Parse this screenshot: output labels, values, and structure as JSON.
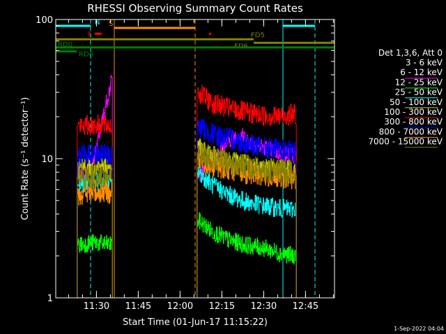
{
  "chart_data": {
    "type": "line",
    "title": "RHESSI Observing Summary Count Rates",
    "xlabel": "Start Time (01-Jun-17 11:15:22)",
    "ylabel": "Count Rate (s⁻¹ detector⁻¹)",
    "yscale": "log",
    "ylim": [
      1,
      100
    ],
    "xlim_minutes": [
      0,
      100
    ],
    "y_ticks": [
      "1",
      "10",
      "100"
    ],
    "x_ticks": [
      {
        "label": "11:30",
        "minute": 14.6
      },
      {
        "label": "11:45",
        "minute": 29.6
      },
      {
        "label": "12:00",
        "minute": 44.6
      },
      {
        "label": "12:15",
        "minute": 59.6
      },
      {
        "label": "12:30",
        "minute": 74.6
      },
      {
        "label": "12:45",
        "minute": 89.6
      }
    ],
    "legend_title": "Det 1,3,6, Att 0",
    "legend_position": "right",
    "series": [
      {
        "name": "3 - 6 keV",
        "color": "#000000",
        "seg1": [
          [
            8,
            8.8
          ],
          [
            14,
            9.0
          ],
          [
            20,
            9.2
          ]
        ],
        "seg2": [
          [
            51,
            17
          ],
          [
            56,
            15
          ],
          [
            62,
            14
          ],
          [
            68,
            13.5
          ],
          [
            74,
            14.5
          ],
          [
            80,
            13
          ],
          [
            86,
            12.5
          ]
        ]
      },
      {
        "name": "6 - 12 keV",
        "color": "#ff00ff",
        "seg1": [
          [
            8,
            8
          ],
          [
            11,
            8.2
          ],
          [
            13.5,
            9.5
          ],
          [
            15,
            13
          ],
          [
            17,
            20
          ],
          [
            19,
            30
          ],
          [
            20,
            36
          ]
        ],
        "seg2": [
          [
            51,
            7.5
          ],
          [
            58,
            11
          ],
          [
            63,
            14
          ],
          [
            66,
            15
          ],
          [
            70,
            13
          ],
          [
            75,
            12
          ],
          [
            80,
            11
          ],
          [
            86,
            10.5
          ]
        ]
      },
      {
        "name": "12 - 25 keV",
        "color": "#00ff00",
        "seg1": [
          [
            8,
            2.4
          ],
          [
            14,
            2.5
          ],
          [
            20,
            2.4
          ]
        ],
        "seg2": [
          [
            51,
            3.6
          ],
          [
            56,
            3.0
          ],
          [
            62,
            2.6
          ],
          [
            68,
            2.4
          ],
          [
            74,
            2.3
          ],
          [
            80,
            2.1
          ],
          [
            86,
            2.0
          ]
        ]
      },
      {
        "name": "25 - 50 keV",
        "color": "#00ffff",
        "seg1": [
          [
            8,
            6.5
          ],
          [
            14,
            6.8
          ],
          [
            20,
            6.6
          ]
        ],
        "seg2": [
          [
            51,
            8.0
          ],
          [
            56,
            6.5
          ],
          [
            62,
            5.5
          ],
          [
            68,
            4.9
          ],
          [
            74,
            4.6
          ],
          [
            80,
            4.4
          ],
          [
            86,
            4.3
          ]
        ]
      },
      {
        "name": "50 - 100 keV",
        "color": "#cccc00",
        "seg1": [
          [
            8,
            8.7
          ],
          [
            14,
            8.9
          ],
          [
            20,
            8.8
          ]
        ],
        "seg2": [
          [
            51,
            12
          ],
          [
            56,
            10.5
          ],
          [
            62,
            9.8
          ],
          [
            68,
            9.2
          ],
          [
            74,
            8.7
          ],
          [
            80,
            8.5
          ],
          [
            86,
            8.3
          ]
        ]
      },
      {
        "name": "100 - 300 keV",
        "color": "#ff0000",
        "seg1": [
          [
            8,
            17
          ],
          [
            14,
            17.5
          ],
          [
            20,
            17.2
          ]
        ],
        "seg2": [
          [
            51,
            30
          ],
          [
            56,
            25
          ],
          [
            62,
            23
          ],
          [
            68,
            21.5
          ],
          [
            74,
            20.5
          ],
          [
            80,
            20
          ],
          [
            86,
            21
          ]
        ]
      },
      {
        "name": "300 - 800 keV",
        "color": "#0000ff",
        "seg1": [
          [
            8,
            10.5
          ],
          [
            14,
            10.8
          ],
          [
            20,
            10.6
          ]
        ],
        "seg2": [
          [
            51,
            17
          ],
          [
            56,
            15
          ],
          [
            62,
            14
          ],
          [
            68,
            13
          ],
          [
            74,
            12
          ],
          [
            80,
            11.5
          ],
          [
            86,
            11
          ]
        ]
      },
      {
        "name": "800 - 7000 keV",
        "color": "#ff8c00",
        "seg1": [
          [
            8,
            5.6
          ],
          [
            14,
            5.8
          ],
          [
            20,
            5.7
          ]
        ],
        "seg2": [
          [
            51,
            10
          ],
          [
            56,
            9.0
          ],
          [
            62,
            8.5
          ],
          [
            68,
            8.0
          ],
          [
            74,
            7.6
          ],
          [
            80,
            7.4
          ],
          [
            86,
            7.3
          ]
        ]
      },
      {
        "name": "7000 - 15000 keV",
        "color": "#808000",
        "seg1": [
          [
            8,
            7.3
          ],
          [
            14,
            7.5
          ],
          [
            20,
            7.4
          ]
        ],
        "seg2": [
          [
            51,
            11
          ],
          [
            56,
            10
          ],
          [
            62,
            9.3
          ],
          [
            68,
            8.8
          ],
          [
            74,
            8.4
          ],
          [
            80,
            8.1
          ],
          [
            86,
            8.0
          ]
        ]
      }
    ],
    "flag_bars": [
      {
        "label": "",
        "color": "#00ffff",
        "y": 90,
        "x1": 0,
        "x2": 12.5
      },
      {
        "label": "",
        "color": "#00ffff",
        "y": 90,
        "x1": 81.5,
        "x2": 93
      },
      {
        "label": "N",
        "color": "#00ffff",
        "y": 90,
        "x1": 12.5,
        "x2": 12.5
      },
      {
        "label": "S",
        "color": "#ff8c00",
        "y": 87,
        "x1": 21,
        "x2": 50
      },
      {
        "label": "F",
        "color": "#ff0000",
        "y": 79,
        "x1": 14,
        "x2": 16.5
      },
      {
        "label": "",
        "color": "#ff0000",
        "y": 79,
        "x1": 55,
        "x2": 55.8
      },
      {
        "label": "FD5",
        "color": "#808000",
        "y": 72,
        "x1": 0,
        "x2": 71
      },
      {
        "label": "FD6",
        "color": "#808000",
        "y": 68,
        "x1": 71,
        "x2": 100
      },
      {
        "label": "RD0",
        "color": "#008000",
        "y": 63,
        "x1": 0,
        "x2": 100
      },
      {
        "label": "RD6",
        "color": "#008000",
        "y": 59,
        "x1": 0,
        "x2": 7.5
      }
    ],
    "vlines": [
      {
        "color": "#00ffff",
        "style": "solid",
        "x": 0
      },
      {
        "color": "#00ffff",
        "style": "dashed",
        "x": 12.5
      },
      {
        "color": "#ff8c00",
        "style": "solid",
        "x": 21
      },
      {
        "color": "#ff8c00",
        "style": "dashed",
        "x": 50
      },
      {
        "color": "#00ffff",
        "style": "solid",
        "x": 81.5
      },
      {
        "color": "#00ffff",
        "style": "dashed",
        "x": 93
      }
    ]
  },
  "timestamp": "1-Sep-2022 04:04"
}
